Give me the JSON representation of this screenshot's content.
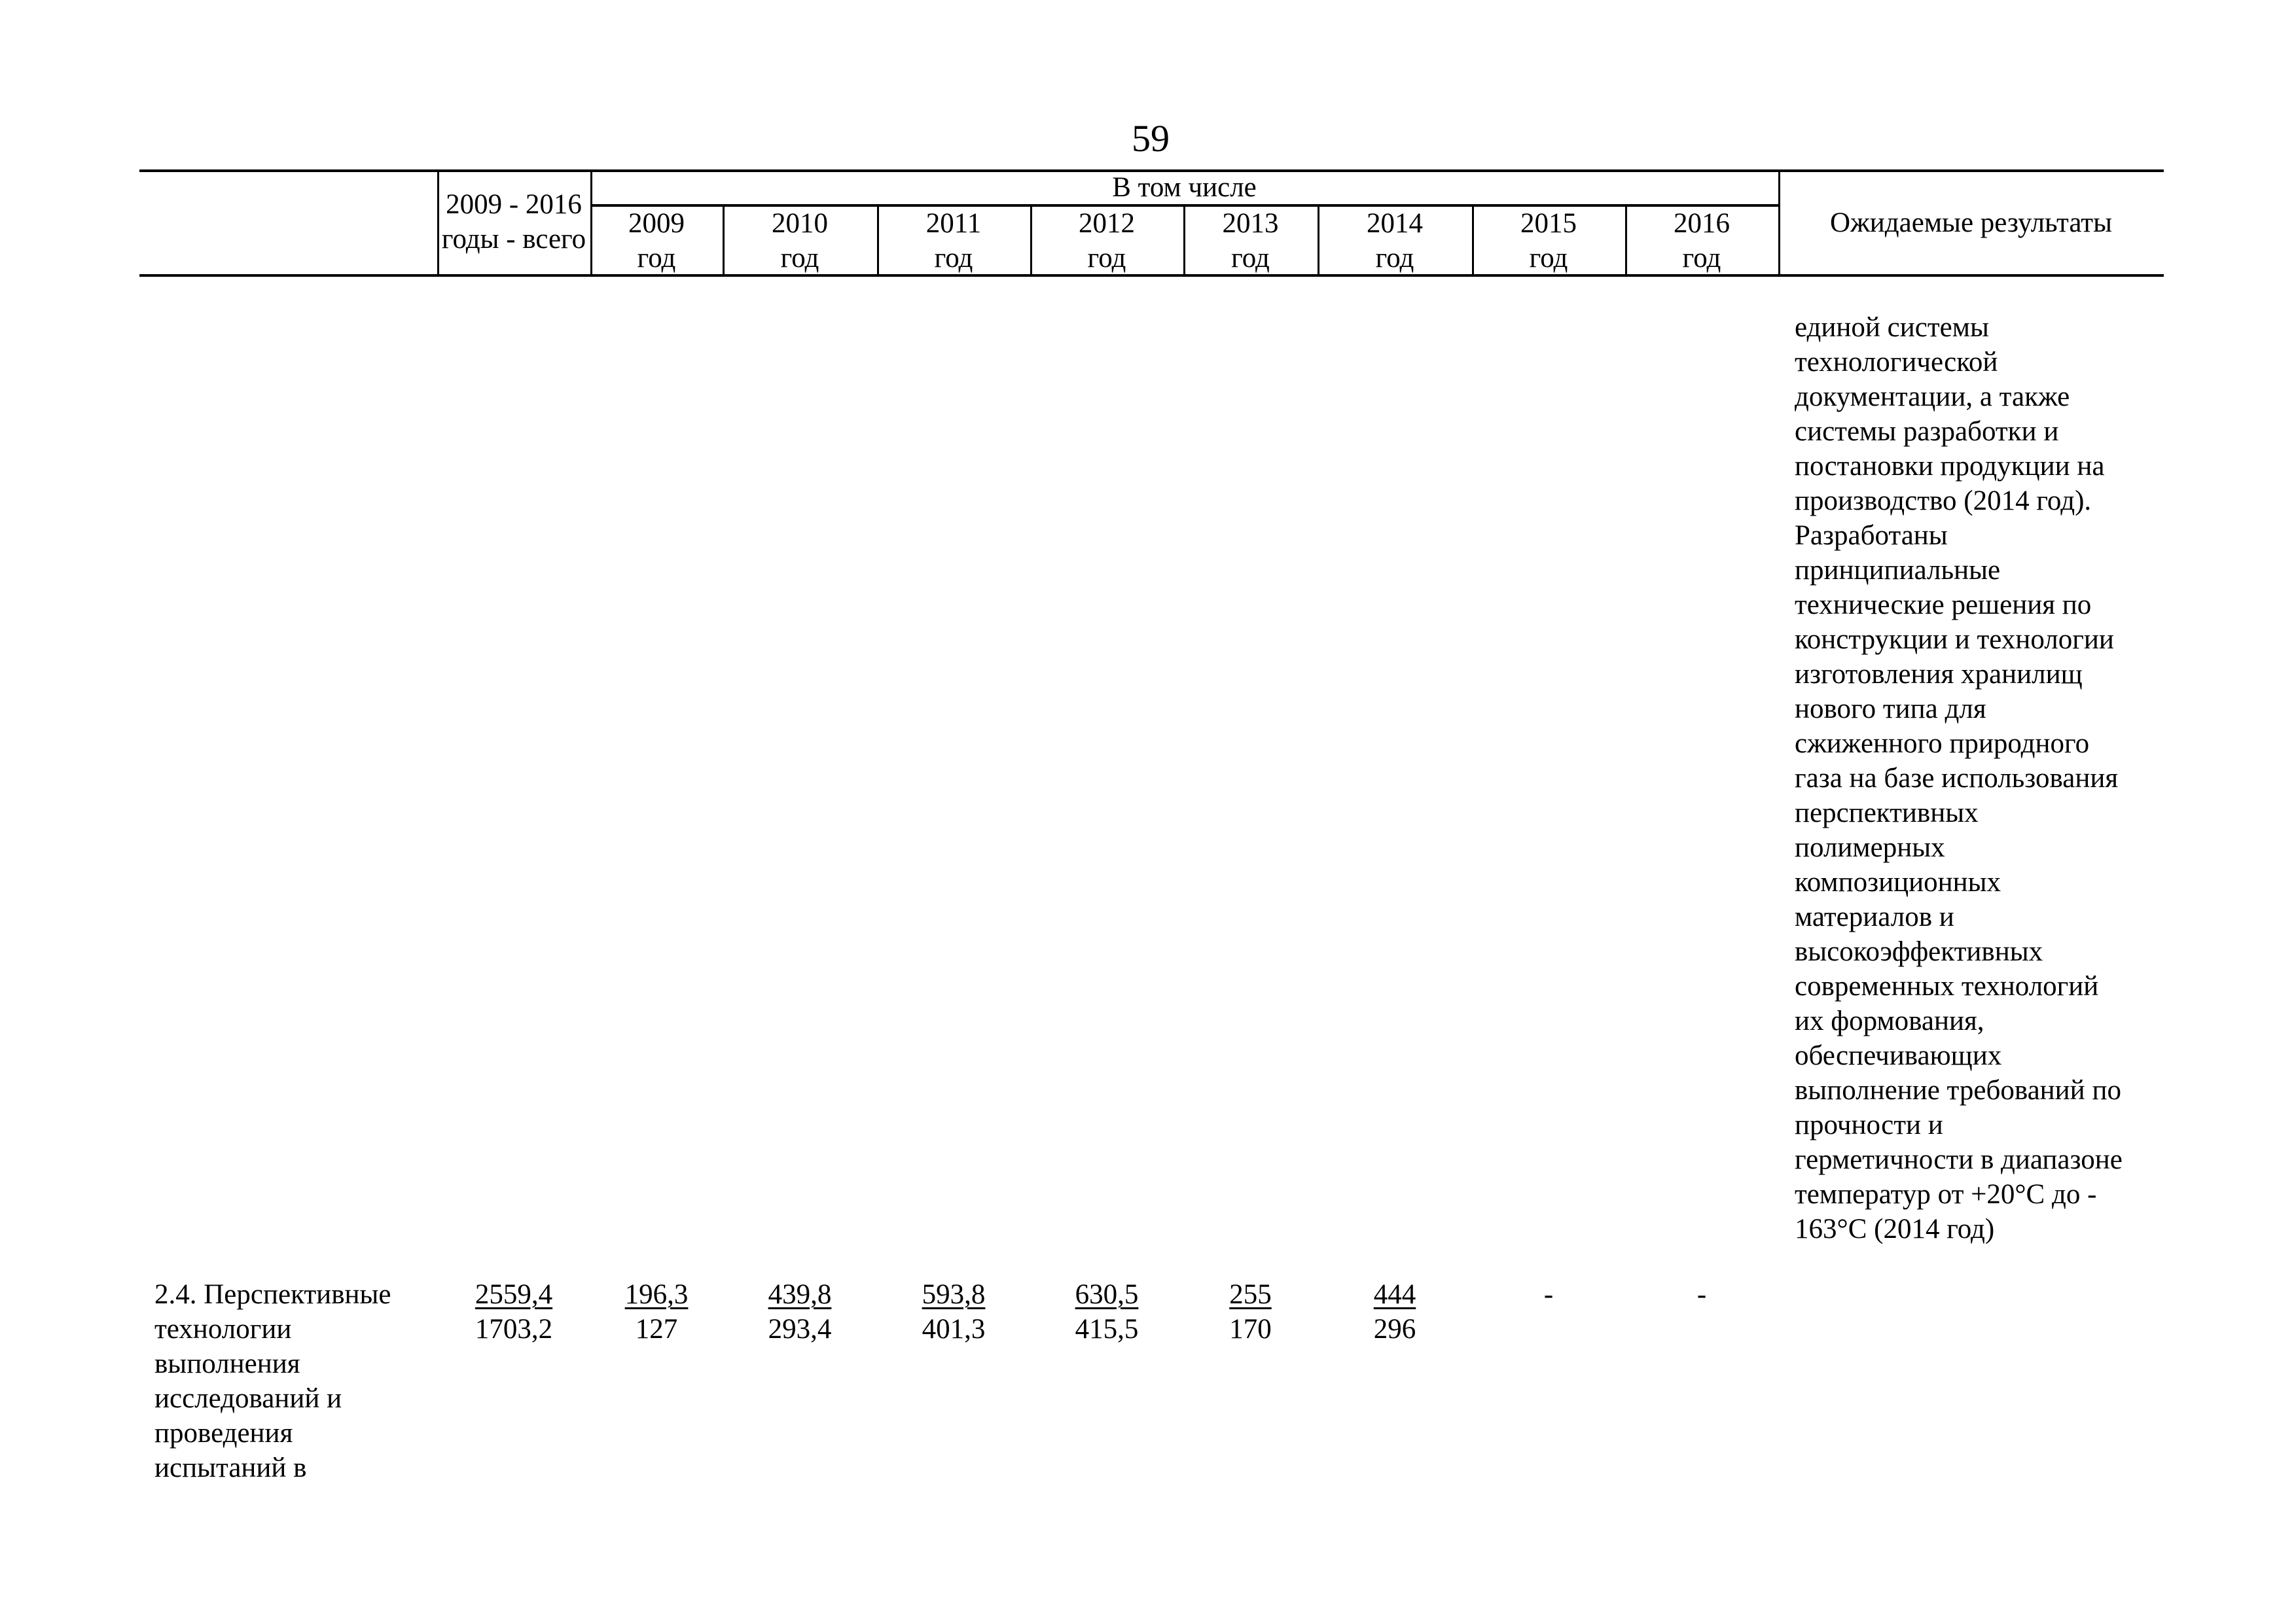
{
  "page_number": "59",
  "header": {
    "total_col": [
      "2009 - 2016",
      "годы - всего"
    ],
    "group_label": "В том числе",
    "years": [
      {
        "year": "2009",
        "unit": "год"
      },
      {
        "year": "2010",
        "unit": "год"
      },
      {
        "year": "2011",
        "unit": "год"
      },
      {
        "year": "2012",
        "unit": "год"
      },
      {
        "year": "2013",
        "unit": "год"
      },
      {
        "year": "2014",
        "unit": "год"
      },
      {
        "year": "2015",
        "unit": "год"
      },
      {
        "year": "2016",
        "unit": "год"
      }
    ],
    "results_col": "Ожидаемые результаты"
  },
  "continued_results": [
    "единой системы",
    "технологической",
    "документации, а также",
    "системы разработки и",
    "постановки продукции на",
    "производство (2014 год).",
    "Разработаны",
    "принципиальные",
    "технические решения по",
    "конструкции и технологии",
    "изготовления хранилищ",
    "нового типа для",
    "сжиженного природного",
    "газа на базе использования",
    "перспективных",
    "полимерных",
    "композиционных",
    "материалов и",
    "высокоэффективных",
    "современных технологий",
    "их формования,",
    "обеспечивающих",
    "выполнение требований по",
    "прочности и",
    "герметичности в диапазоне",
    "температур от +20°С до -",
    "163°С (2014 год)"
  ],
  "row_2_4": {
    "name_lines": [
      "2.4. Перспективные",
      "технологии",
      "выполнения",
      "исследований и",
      "проведения",
      "испытаний в"
    ],
    "top_values": [
      "2559,4",
      "196,3",
      "439,8",
      "593,8",
      "630,5",
      "255",
      "444",
      "-",
      "-"
    ],
    "bottom_values": [
      "1703,2",
      "127",
      "293,4",
      "401,3",
      "415,5",
      "170",
      "296",
      "",
      ""
    ]
  }
}
